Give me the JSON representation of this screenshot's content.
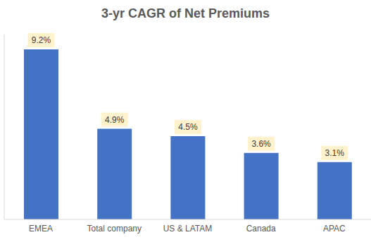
{
  "chart_data": {
    "type": "bar",
    "title": "3-yr CAGR of Net Premiums",
    "categories": [
      "EMEA",
      "Total company",
      "US & LATAM",
      "Canada",
      "APAC"
    ],
    "values": [
      9.2,
      4.9,
      4.5,
      3.6,
      3.1
    ],
    "value_labels": [
      "9.2%",
      "4.9%",
      "4.5%",
      "3.6%",
      "3.1%"
    ],
    "color": "#4472c4",
    "ylim": [
      0,
      10
    ],
    "data_labels": true,
    "tick_labels": "x",
    "grid": false
  }
}
